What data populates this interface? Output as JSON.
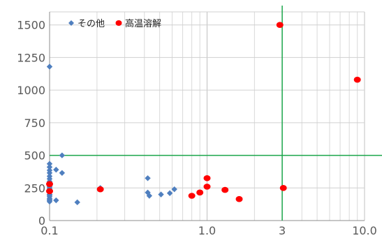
{
  "chart_data": {
    "type": "scatter",
    "x_scale": "log",
    "xlim": [
      0.1,
      10.0
    ],
    "ylim": [
      0,
      1600
    ],
    "x_tick_labels": [
      {
        "value": 0.1,
        "label": "0.1"
      },
      {
        "value": 1.0,
        "label": "1.0"
      },
      {
        "value": 3,
        "label": "3"
      },
      {
        "value": 10.0,
        "label": "10.0"
      }
    ],
    "y_ticks": [
      0,
      250,
      500,
      750,
      1000,
      1250,
      1500
    ],
    "grid": true,
    "legend_position": "top-left",
    "reference_lines": {
      "x": 3,
      "y": 500,
      "color": "#1aa64a"
    },
    "series": [
      {
        "name": "その他",
        "marker": "diamond",
        "color": "#4f7fbf",
        "points": [
          [
            0.1,
            1180
          ],
          [
            0.1,
            435
          ],
          [
            0.1,
            410
          ],
          [
            0.1,
            385
          ],
          [
            0.1,
            365
          ],
          [
            0.1,
            340
          ],
          [
            0.1,
            320
          ],
          [
            0.1,
            300
          ],
          [
            0.1,
            280
          ],
          [
            0.1,
            260
          ],
          [
            0.1,
            240
          ],
          [
            0.1,
            220
          ],
          [
            0.1,
            200
          ],
          [
            0.1,
            185
          ],
          [
            0.1,
            170
          ],
          [
            0.1,
            155
          ],
          [
            0.1,
            145
          ],
          [
            0.1,
            195
          ],
          [
            0.1,
            160
          ],
          [
            0.1,
            250
          ],
          [
            0.1,
            270
          ],
          [
            0.11,
            390
          ],
          [
            0.12,
            500
          ],
          [
            0.12,
            365
          ],
          [
            0.11,
            155
          ],
          [
            0.15,
            140
          ],
          [
            0.21,
            250
          ],
          [
            0.42,
            325
          ],
          [
            0.42,
            215
          ],
          [
            0.43,
            190
          ],
          [
            0.51,
            200
          ],
          [
            0.58,
            210
          ],
          [
            0.62,
            240
          ]
        ]
      },
      {
        "name": "高温溶解",
        "marker": "circle",
        "color": "#ff0000",
        "points": [
          [
            0.1,
            280
          ],
          [
            0.1,
            225
          ],
          [
            0.21,
            240
          ],
          [
            0.8,
            190
          ],
          [
            0.9,
            215
          ],
          [
            1.0,
            325
          ],
          [
            1.0,
            260
          ],
          [
            1.3,
            235
          ],
          [
            1.6,
            165
          ],
          [
            2.9,
            1500
          ],
          [
            3.05,
            250
          ],
          [
            9.0,
            1080
          ]
        ]
      }
    ]
  }
}
